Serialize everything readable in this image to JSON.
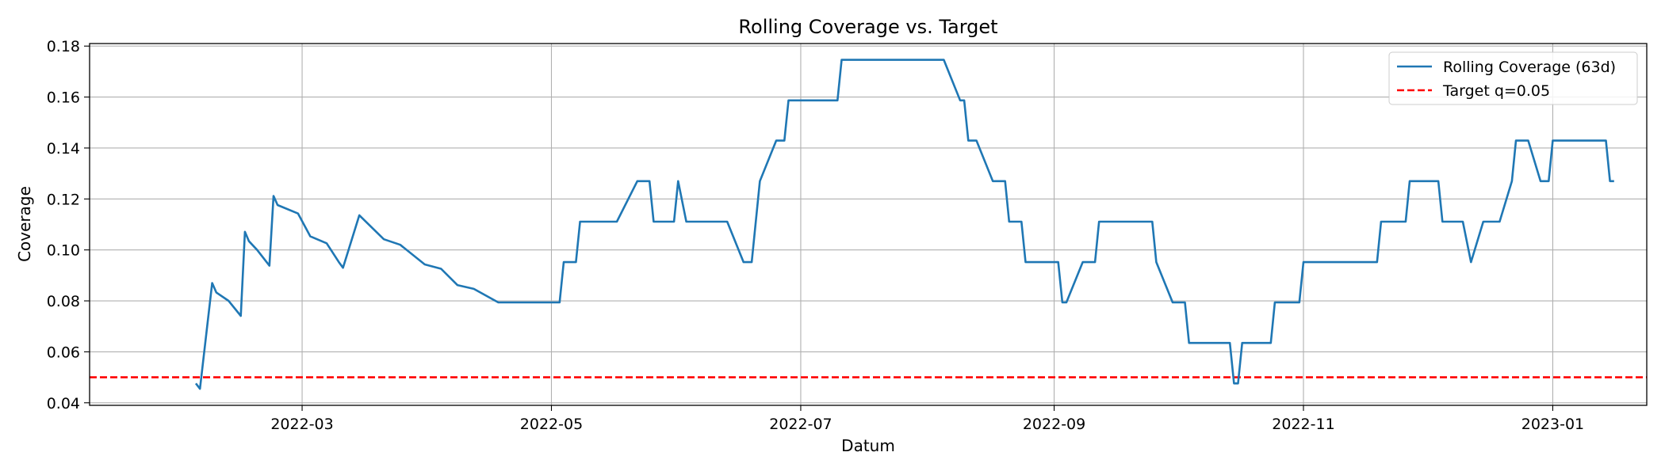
{
  "chart_data": {
    "type": "line",
    "title": "Rolling Coverage vs. Target",
    "xlabel": "Datum",
    "ylabel": "Coverage",
    "xlim": [
      "2022-01-08",
      "2023-01-24"
    ],
    "ylim": [
      0.039,
      0.181
    ],
    "x_ticks": [
      {
        "date": "2022-03-01",
        "label": "2022-03"
      },
      {
        "date": "2022-05-01",
        "label": "2022-05"
      },
      {
        "date": "2022-07-01",
        "label": "2022-07"
      },
      {
        "date": "2022-09-01",
        "label": "2022-09"
      },
      {
        "date": "2022-11-01",
        "label": "2022-11"
      },
      {
        "date": "2023-01-01",
        "label": "2023-01"
      }
    ],
    "y_ticks": [
      {
        "value": 0.04,
        "label": "0.04"
      },
      {
        "value": 0.06,
        "label": "0.06"
      },
      {
        "value": 0.08,
        "label": "0.08"
      },
      {
        "value": 0.1,
        "label": "0.10"
      },
      {
        "value": 0.12,
        "label": "0.12"
      },
      {
        "value": 0.14,
        "label": "0.14"
      },
      {
        "value": 0.16,
        "label": "0.16"
      },
      {
        "value": 0.18,
        "label": "0.18"
      }
    ],
    "grid": true,
    "legend_position": "top-right",
    "series": [
      {
        "name": "Rolling Coverage (63d)",
        "color": "#1f77b4",
        "style": "solid",
        "points": [
          [
            "2022-02-03",
            0.0476
          ],
          [
            "2022-02-04",
            0.0455
          ],
          [
            "2022-02-07",
            0.087
          ],
          [
            "2022-02-08",
            0.0833
          ],
          [
            "2022-02-11",
            0.08
          ],
          [
            "2022-02-14",
            0.0741
          ],
          [
            "2022-02-15",
            0.1071
          ],
          [
            "2022-02-16",
            0.1034
          ],
          [
            "2022-02-18",
            0.1
          ],
          [
            "2022-02-21",
            0.0938
          ],
          [
            "2022-02-22",
            0.1212
          ],
          [
            "2022-02-23",
            0.1176
          ],
          [
            "2022-02-28",
            0.1143
          ],
          [
            "2022-03-03",
            0.1053
          ],
          [
            "2022-03-07",
            0.1026
          ],
          [
            "2022-03-10",
            0.0952
          ],
          [
            "2022-03-11",
            0.093
          ],
          [
            "2022-03-15",
            0.1136
          ],
          [
            "2022-03-21",
            0.1042
          ],
          [
            "2022-03-25",
            0.102
          ],
          [
            "2022-03-31",
            0.0943
          ],
          [
            "2022-04-04",
            0.0926
          ],
          [
            "2022-04-08",
            0.0862
          ],
          [
            "2022-04-12",
            0.0847
          ],
          [
            "2022-04-18",
            0.0794
          ],
          [
            "2022-05-03",
            0.0794
          ],
          [
            "2022-05-04",
            0.0952
          ],
          [
            "2022-05-07",
            0.0952
          ],
          [
            "2022-05-08",
            0.1111
          ],
          [
            "2022-05-17",
            0.1111
          ],
          [
            "2022-05-22",
            0.127
          ],
          [
            "2022-05-25",
            0.127
          ],
          [
            "2022-05-26",
            0.1111
          ],
          [
            "2022-05-31",
            0.1111
          ],
          [
            "2022-06-01",
            0.127
          ],
          [
            "2022-06-03",
            0.1111
          ],
          [
            "2022-06-13",
            0.1111
          ],
          [
            "2022-06-17",
            0.0952
          ],
          [
            "2022-06-19",
            0.0952
          ],
          [
            "2022-06-21",
            0.127
          ],
          [
            "2022-06-25",
            0.1429
          ],
          [
            "2022-06-27",
            0.1429
          ],
          [
            "2022-06-28",
            0.1587
          ],
          [
            "2022-07-10",
            0.1587
          ],
          [
            "2022-07-11",
            0.1746
          ],
          [
            "2022-08-05",
            0.1746
          ],
          [
            "2022-08-09",
            0.1587
          ],
          [
            "2022-08-10",
            0.1587
          ],
          [
            "2022-08-11",
            0.1429
          ],
          [
            "2022-08-13",
            0.1429
          ],
          [
            "2022-08-17",
            0.127
          ],
          [
            "2022-08-20",
            0.127
          ],
          [
            "2022-08-21",
            0.1111
          ],
          [
            "2022-08-24",
            0.1111
          ],
          [
            "2022-08-25",
            0.0952
          ],
          [
            "2022-09-02",
            0.0952
          ],
          [
            "2022-09-03",
            0.0794
          ],
          [
            "2022-09-04",
            0.0794
          ],
          [
            "2022-09-08",
            0.0952
          ],
          [
            "2022-09-11",
            0.0952
          ],
          [
            "2022-09-12",
            0.1111
          ],
          [
            "2022-09-25",
            0.1111
          ],
          [
            "2022-09-26",
            0.0952
          ],
          [
            "2022-09-30",
            0.0794
          ],
          [
            "2022-10-03",
            0.0794
          ],
          [
            "2022-10-04",
            0.0635
          ],
          [
            "2022-10-14",
            0.0635
          ],
          [
            "2022-10-15",
            0.0476
          ],
          [
            "2022-10-16",
            0.0476
          ],
          [
            "2022-10-17",
            0.0635
          ],
          [
            "2022-10-24",
            0.0635
          ],
          [
            "2022-10-25",
            0.0794
          ],
          [
            "2022-10-31",
            0.0794
          ],
          [
            "2022-11-01",
            0.0952
          ],
          [
            "2022-11-19",
            0.0952
          ],
          [
            "2022-11-20",
            0.1111
          ],
          [
            "2022-11-26",
            0.1111
          ],
          [
            "2022-11-27",
            0.127
          ],
          [
            "2022-12-04",
            0.127
          ],
          [
            "2022-12-05",
            0.1111
          ],
          [
            "2022-12-10",
            0.1111
          ],
          [
            "2022-12-12",
            0.0952
          ],
          [
            "2022-12-15",
            0.1111
          ],
          [
            "2022-12-19",
            0.1111
          ],
          [
            "2022-12-22",
            0.127
          ],
          [
            "2022-12-23",
            0.1429
          ],
          [
            "2022-12-26",
            0.1429
          ],
          [
            "2022-12-29",
            0.127
          ],
          [
            "2022-12-31",
            0.127
          ],
          [
            "2023-01-01",
            0.1429
          ],
          [
            "2023-01-14",
            0.1429
          ],
          [
            "2023-01-15",
            0.127
          ],
          [
            "2023-01-16",
            0.127
          ]
        ]
      },
      {
        "name": "Target q=0.05",
        "color": "#ff0000",
        "style": "dashed",
        "value": 0.05
      }
    ]
  }
}
